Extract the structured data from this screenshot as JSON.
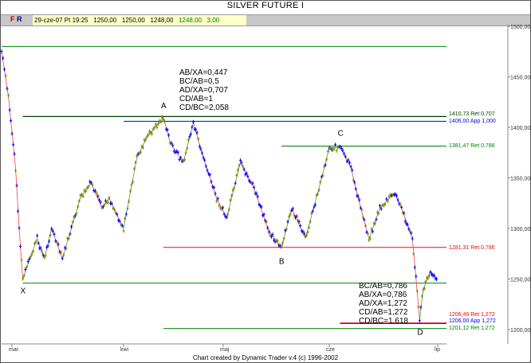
{
  "window": {
    "title": "SILVER FUTURE    I"
  },
  "toolbar": {
    "f_label": "F",
    "r_label": "R",
    "quote": {
      "datetime": "29-cze-07 Pt 19:25",
      "open": "1250,00",
      "high": "1250,00",
      "low": "1248,00",
      "close": "1248,00",
      "change": "3,00"
    }
  },
  "footer": "Chart created by Dynamic Trader v.4  (c) 1996-2002",
  "chart_data": {
    "type": "line",
    "title": "SILVER FUTURE    I",
    "ylim": [
      1185,
      1510
    ],
    "y_ticks": [
      "1500,00",
      "1450,00",
      "1400,00",
      "1350,00",
      "1300,00",
      "1250,00",
      "1200,00"
    ],
    "y_tick_values": [
      1500,
      1450,
      1400,
      1350,
      1300,
      1250,
      1200
    ],
    "x_ticks": [
      {
        "label": "mar",
        "date": "2007-03-01"
      },
      {
        "label": "kwi",
        "date": "2007-04-01"
      },
      {
        "label": "maj",
        "date": "2007-05-01"
      },
      {
        "label": "cze",
        "date": "2007-06-01"
      },
      {
        "label": "lip",
        "date": "2007-07-01"
      }
    ],
    "colors": {
      "up": "#808000",
      "down": "#0000ff",
      "ret": "#008000",
      "app": "#0000ff",
      "red": "#ff0000"
    },
    "series": [
      {
        "points": [
          [
            "2007-02-26",
            1475
          ],
          [
            "2007-02-28",
            1430
          ],
          [
            "2007-03-02",
            1360
          ],
          [
            "2007-03-03",
            1300
          ],
          [
            "2007-03-04",
            1250
          ],
          [
            "2007-03-08",
            1290
          ],
          [
            "2007-03-10",
            1270
          ],
          [
            "2007-03-12",
            1300
          ],
          [
            "2007-03-15",
            1270
          ],
          [
            "2007-03-20",
            1330
          ],
          [
            "2007-03-23",
            1345
          ],
          [
            "2007-03-26",
            1320
          ],
          [
            "2007-03-28",
            1330
          ],
          [
            "2007-04-01",
            1300
          ],
          [
            "2007-04-05",
            1370
          ],
          [
            "2007-04-08",
            1390
          ],
          [
            "2007-04-13",
            1410
          ],
          [
            "2007-04-15",
            1385
          ],
          [
            "2007-04-19",
            1365
          ],
          [
            "2007-04-22",
            1405
          ],
          [
            "2007-04-25",
            1370
          ],
          [
            "2007-04-29",
            1330
          ],
          [
            "2007-05-02",
            1310
          ],
          [
            "2007-05-06",
            1365
          ],
          [
            "2007-05-10",
            1340
          ],
          [
            "2007-05-14",
            1300
          ],
          [
            "2007-05-18",
            1280
          ],
          [
            "2007-05-21",
            1320
          ],
          [
            "2007-05-25",
            1290
          ],
          [
            "2007-05-29",
            1340
          ],
          [
            "2007-06-01",
            1380
          ],
          [
            "2007-06-04",
            1380
          ],
          [
            "2007-06-07",
            1360
          ],
          [
            "2007-06-09",
            1330
          ],
          [
            "2007-06-12",
            1290
          ],
          [
            "2007-06-15",
            1320
          ],
          [
            "2007-06-19",
            1335
          ],
          [
            "2007-06-21",
            1320
          ],
          [
            "2007-06-23",
            1300
          ],
          [
            "2007-06-24",
            1290
          ],
          [
            "2007-06-26",
            1210
          ],
          [
            "2007-06-27",
            1240
          ],
          [
            "2007-06-29",
            1258
          ],
          [
            "2007-07-01",
            1250
          ]
        ]
      }
    ],
    "pattern_points": [
      {
        "label": "X",
        "date": "2007-03-04",
        "price": 1247
      },
      {
        "label": "A",
        "date": "2007-04-13",
        "price": 1411
      },
      {
        "label": "B",
        "date": "2007-05-18",
        "price": 1276
      },
      {
        "label": "C",
        "date": "2007-06-04",
        "price": 1384
      },
      {
        "label": "D",
        "date": "2007-06-26",
        "price": 1206
      }
    ],
    "levels": [
      {
        "price": 1480,
        "start": "2007-02-26",
        "color": "#008000",
        "label": ""
      },
      {
        "price": 1410.73,
        "start": "2007-03-04",
        "color": "#004000",
        "label": "1410,73 Ret 0,707"
      },
      {
        "price": 1406.0,
        "start": "2007-04-01",
        "color": "#0000ff",
        "label": "1406,00 App 1,000"
      },
      {
        "price": 1381.47,
        "start": "2007-05-18",
        "color": "#008000",
        "label": "1381,47 Ret 0,786"
      },
      {
        "price": 1281.31,
        "start": "2007-04-13",
        "color": "#ff0000",
        "label": "1281,31 Ret 0,786"
      },
      {
        "price": 1246,
        "start": "2007-03-04",
        "color": "#008000",
        "label": ""
      },
      {
        "price": 1206.46,
        "start": "2007-06-04",
        "color": "#ff0000",
        "label": "1206,46 Ret 1,272"
      },
      {
        "price": 1206.0,
        "start": "2007-06-04",
        "color": "#0000ff",
        "label": "1206,00 App 1,272"
      },
      {
        "price": 1201.12,
        "start": "2007-04-13",
        "color": "#008000",
        "label": "1201,12 Ret 1,272"
      }
    ],
    "ratios_top": [
      "AB/XA=0,447",
      "BC/AB=0,5",
      "AD/XA=0,707",
      "CD/AB=1",
      "CD/BC=2,058"
    ],
    "ratios_bottom": [
      "BC/AB=0,786",
      "AB/XA=0,786",
      "AD/XA=1,272",
      "CD/AB=1,272",
      "CD/BC=1,618"
    ]
  }
}
